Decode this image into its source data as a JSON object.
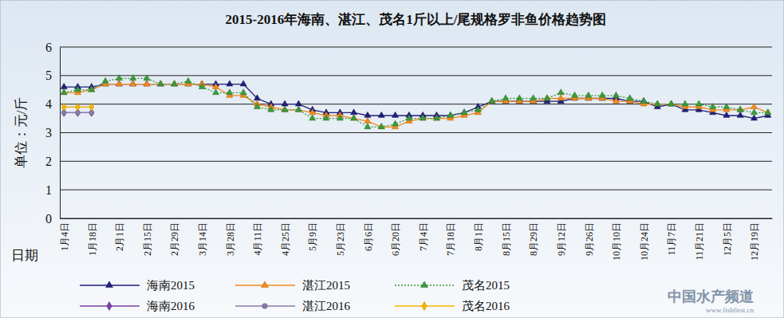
{
  "chart_data": {
    "type": "line",
    "title": "2015-2016年海南、湛江、茂名1斤以上/尾规格罗非鱼价格趋势图",
    "y_label": "单位：元/斤",
    "x_label": "日期",
    "annotations": [
      "中国水产频道",
      "www.fishfirst.cn"
    ],
    "categories": [
      "1月4日",
      null,
      "1月18日",
      null,
      "2月1日",
      null,
      "2月15日",
      null,
      "2月29日",
      null,
      "3月14日",
      null,
      "3月28日",
      null,
      "4月11日",
      null,
      "4月25日",
      null,
      "5月9日",
      null,
      "5月23日",
      null,
      "6月6日",
      null,
      "6月20日",
      null,
      "7月4日",
      null,
      "7月18日",
      null,
      "8月1日",
      null,
      "8月15日",
      null,
      "8月29日",
      null,
      "9月12日",
      null,
      "9月26日",
      null,
      "10月10日",
      null,
      "10月24日",
      null,
      "11月7日",
      null,
      "11月21日",
      null,
      "12月5日",
      null,
      "12月19日",
      null
    ],
    "series": [
      {
        "name": "海南2015",
        "color": "#1f1f78",
        "marker": "triangle",
        "line_style": "solid",
        "values": [
          4.6,
          4.6,
          4.6,
          4.7,
          4.7,
          4.7,
          4.7,
          4.7,
          4.7,
          4.7,
          4.7,
          4.7,
          4.7,
          4.7,
          4.2,
          4.0,
          4.0,
          4.0,
          3.8,
          3.7,
          3.7,
          3.7,
          3.6,
          3.6,
          3.6,
          3.6,
          3.6,
          3.6,
          3.6,
          3.7,
          3.9,
          4.1,
          4.1,
          4.1,
          4.1,
          4.1,
          4.1,
          4.2,
          4.2,
          4.2,
          4.2,
          4.1,
          4.1,
          3.9,
          4.0,
          3.8,
          3.8,
          3.7,
          3.6,
          3.6,
          3.5,
          3.6
        ]
      },
      {
        "name": "湛江2015",
        "color": "#f28a1c",
        "marker": "triangle",
        "line_style": "solid",
        "values": [
          4.4,
          4.4,
          4.5,
          4.7,
          4.7,
          4.7,
          4.7,
          4.7,
          4.7,
          4.7,
          4.7,
          4.6,
          4.3,
          4.3,
          4.0,
          3.9,
          3.8,
          3.8,
          3.7,
          3.6,
          3.6,
          3.5,
          3.4,
          3.2,
          3.2,
          3.4,
          3.5,
          3.5,
          3.5,
          3.6,
          3.7,
          4.1,
          4.1,
          4.1,
          4.1,
          4.2,
          4.2,
          4.2,
          4.2,
          4.2,
          4.1,
          4.1,
          4.0,
          4.0,
          4.0,
          3.9,
          3.9,
          3.8,
          3.8,
          3.8,
          3.9,
          3.7
        ]
      },
      {
        "name": "茂名2015",
        "color": "#3c9a3c",
        "marker": "triangle",
        "line_style": "dotted",
        "values": [
          4.4,
          4.5,
          4.5,
          4.8,
          4.9,
          4.9,
          4.9,
          4.7,
          4.7,
          4.8,
          4.6,
          4.4,
          4.4,
          4.4,
          3.9,
          3.8,
          3.8,
          3.8,
          3.5,
          3.5,
          3.5,
          3.5,
          3.2,
          3.2,
          3.3,
          3.5,
          3.5,
          3.5,
          3.6,
          3.7,
          3.8,
          4.1,
          4.2,
          4.2,
          4.2,
          4.2,
          4.4,
          4.3,
          4.3,
          4.3,
          4.3,
          4.2,
          4.1,
          4.0,
          4.0,
          4.0,
          4.0,
          3.9,
          3.9,
          3.8,
          3.7,
          3.7
        ]
      },
      {
        "name": "海南2016",
        "color": "#7a3fa8",
        "marker": "diamond",
        "line_style": "solid",
        "values": [
          3.7,
          3.7,
          3.7,
          null,
          null,
          null,
          null,
          null,
          null,
          null,
          null,
          null,
          null,
          null,
          null,
          null,
          null,
          null,
          null,
          null,
          null,
          null,
          null,
          null,
          null,
          null,
          null,
          null,
          null,
          null,
          null,
          null,
          null,
          null,
          null,
          null,
          null,
          null,
          null,
          null,
          null,
          null,
          null,
          null,
          null,
          null,
          null,
          null,
          null,
          null,
          null,
          null
        ]
      },
      {
        "name": "湛江2016",
        "color": "#8a7aa8",
        "marker": "circle",
        "line_style": "solid",
        "values": [
          3.7,
          3.7,
          3.7,
          null,
          null,
          null,
          null,
          null,
          null,
          null,
          null,
          null,
          null,
          null,
          null,
          null,
          null,
          null,
          null,
          null,
          null,
          null,
          null,
          null,
          null,
          null,
          null,
          null,
          null,
          null,
          null,
          null,
          null,
          null,
          null,
          null,
          null,
          null,
          null,
          null,
          null,
          null,
          null,
          null,
          null,
          null,
          null,
          null,
          null,
          null,
          null,
          null
        ]
      },
      {
        "name": "茂名2016",
        "color": "#f5b400",
        "marker": "diamond",
        "line_style": "solid",
        "values": [
          3.9,
          3.9,
          3.9,
          null,
          null,
          null,
          null,
          null,
          null,
          null,
          null,
          null,
          null,
          null,
          null,
          null,
          null,
          null,
          null,
          null,
          null,
          null,
          null,
          null,
          null,
          null,
          null,
          null,
          null,
          null,
          null,
          null,
          null,
          null,
          null,
          null,
          null,
          null,
          null,
          null,
          null,
          null,
          null,
          null,
          null,
          null,
          null,
          null,
          null,
          null,
          null,
          null
        ]
      }
    ],
    "ylim": [
      0,
      6
    ],
    "yticks": [
      0,
      1,
      2,
      3,
      4,
      5,
      6
    ],
    "grid": true,
    "legend": "bottom"
  }
}
